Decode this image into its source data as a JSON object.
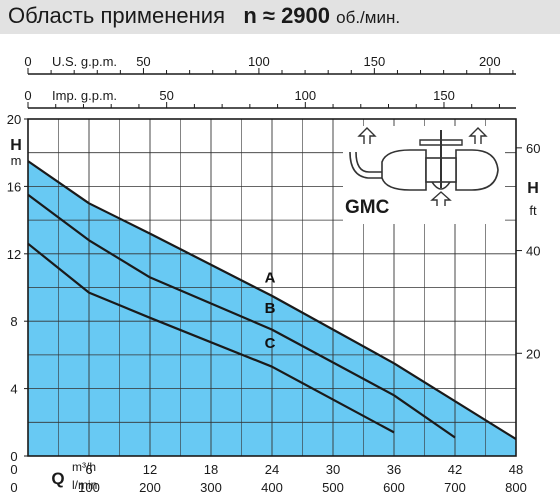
{
  "header": {
    "title": "Область применения",
    "speed_label": "n ≈ 2900",
    "speed_unit": "об./мин."
  },
  "chart_data": {
    "type": "line",
    "model_label": "GMC",
    "fill_color": "#58c3f2",
    "fill_color_light": "#c7ecfb",
    "line_color": "#1a1a1a",
    "grid": true,
    "x_axis": {
      "label": "Q",
      "units": [
        "m³/h",
        "l/min"
      ],
      "range": [
        0,
        48
      ],
      "ticks_m3h": [
        "0",
        "6",
        "12",
        "18",
        "24",
        "30",
        "36",
        "42",
        "48"
      ],
      "ticks_lmin": [
        "0",
        "100",
        "200",
        "300",
        "400",
        "500",
        "600",
        "700",
        "800"
      ]
    },
    "top_axes": [
      {
        "label": "U.S. g.p.m.",
        "ticks": [
          "0",
          "50",
          "100",
          "150",
          "200"
        ],
        "values": [
          0,
          50,
          100,
          150,
          200
        ],
        "m3h_per_unit": 0.22712
      },
      {
        "label": "Imp. g.p.m.",
        "ticks": [
          "0",
          "50",
          "100",
          "150"
        ],
        "values": [
          0,
          50,
          100,
          150
        ],
        "m3h_per_unit": 0.27277
      }
    ],
    "y_axis_left": {
      "label": "H",
      "unit": "m",
      "range": [
        0,
        20
      ],
      "ticks": [
        "0",
        "4",
        "8",
        "12",
        "16",
        "20"
      ],
      "values": [
        0,
        4,
        8,
        12,
        16,
        20
      ]
    },
    "y_axis_right": {
      "label": "H",
      "unit": "ft",
      "ticks": [
        "20",
        "40",
        "60"
      ],
      "values": [
        20,
        40,
        60
      ],
      "m_per_unit": 0.3048
    },
    "series": [
      {
        "name": "A",
        "x": [
          0,
          6,
          12,
          24,
          36,
          48
        ],
        "y": [
          17.5,
          15.0,
          13.2,
          9.5,
          5.5,
          1.0
        ]
      },
      {
        "name": "B",
        "x": [
          0,
          6,
          12,
          24,
          36,
          42
        ],
        "y": [
          15.5,
          12.8,
          10.6,
          7.5,
          3.6,
          1.1
        ]
      },
      {
        "name": "C",
        "x": [
          0,
          6,
          12,
          24,
          36
        ],
        "y": [
          12.6,
          9.7,
          8.2,
          5.3,
          1.4
        ]
      }
    ]
  }
}
